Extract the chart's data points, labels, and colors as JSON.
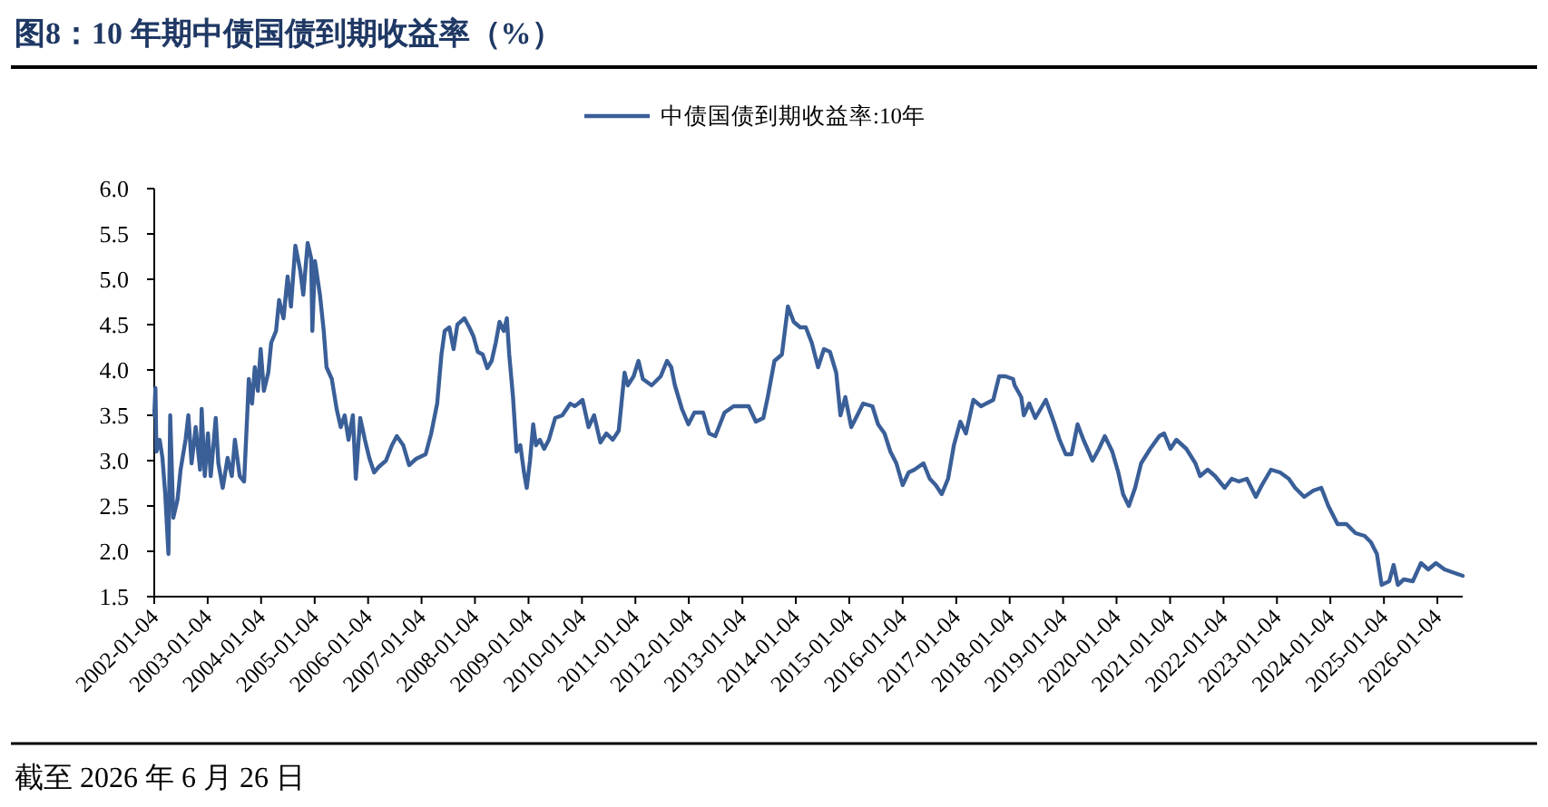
{
  "chart_data": {
    "type": "line",
    "title": "图8：10 年期中债国债到期收益率（%）",
    "annotations": [
      "截至 2026 年 6 月 26 日"
    ],
    "legend": "top",
    "xlim": [
      "2002-01-04",
      "2026-06-26"
    ],
    "xticks": [
      "2002-01-04",
      "2003-01-04",
      "2004-01-04",
      "2005-01-04",
      "2006-01-04",
      "2007-01-04",
      "2008-01-04",
      "2009-01-04",
      "2010-01-04",
      "2011-01-04",
      "2012-01-04",
      "2013-01-04",
      "2014-01-04",
      "2015-01-04",
      "2016-01-04",
      "2017-01-04",
      "2018-01-04",
      "2019-01-04",
      "2020-01-04",
      "2021-01-04",
      "2022-01-04",
      "2023-01-04",
      "2024-01-04",
      "2025-01-04",
      "2026-01-04"
    ],
    "ylim": [
      1.5,
      6.0
    ],
    "yticks": [
      1.5,
      {
        "value": 2,
        "label": "2.0"
      },
      2.5,
      {
        "value": 3,
        "label": "3.0"
      },
      3.5,
      {
        "value": 4,
        "label": "4.0"
      },
      4.5,
      {
        "value": 5,
        "label": "5.0"
      },
      5.5,
      {
        "value": 6,
        "label": "6.0"
      }
    ],
    "x": [
      "2002-01-04",
      "2002-01-12",
      "2002-01-19",
      "2002-02-10",
      "2002-03-01",
      "2002-03-20",
      "2002-04-11",
      "2002-04-23",
      "2002-05-14",
      "2002-06-12",
      "2002-07-03",
      "2002-08-06",
      "2002-08-25",
      "2002-09-16",
      "2002-10-14",
      "2002-11-13",
      "2002-11-24",
      "2002-12-15",
      "2003-01-06",
      "2003-01-25",
      "2003-02-28",
      "2003-03-18",
      "2003-04-17",
      "2003-05-20",
      "2003-06-18",
      "2003-07-09",
      "2003-08-11",
      "2003-09-10",
      "2003-10-01",
      "2003-10-12",
      "2003-11-03",
      "2003-11-22",
      "2003-12-13",
      "2004-01-01",
      "2004-01-23",
      "2004-02-22",
      "2004-03-13",
      "2004-04-15",
      "2004-05-06",
      "2004-06-05",
      "2004-07-03",
      "2004-07-26",
      "2004-08-25",
      "2004-09-27",
      "2004-10-18",
      "2004-11-17",
      "2004-12-11",
      "2004-12-19",
      "2005-01-06",
      "2005-02-09",
      "2005-03-07",
      "2005-03-26",
      "2005-05-01",
      "2005-06-03",
      "2005-07-01",
      "2005-07-28",
      "2005-08-23",
      "2005-09-22",
      "2005-10-12",
      "2005-11-11",
      "2005-12-13",
      "2006-01-12",
      "2006-02-14",
      "2006-03-17",
      "2006-05-06",
      "2006-06-16",
      "2006-07-19",
      "2006-09-01",
      "2006-10-11",
      "2006-11-28",
      "2007-02-01",
      "2007-03-11",
      "2007-04-21",
      "2007-05-20",
      "2007-06-11",
      "2007-07-13",
      "2007-08-11",
      "2007-09-06",
      "2007-10-24",
      "2007-11-26",
      "2007-12-25",
      "2008-01-23",
      "2008-02-26",
      "2008-03-28",
      "2008-04-27",
      "2008-05-25",
      "2008-06-20",
      "2008-07-19",
      "2008-08-09",
      "2008-08-25",
      "2008-09-20",
      "2008-10-14",
      "2008-11-09",
      "2008-12-04",
      "2008-12-23",
      "2009-01-14",
      "2009-02-05",
      "2009-02-24",
      "2009-03-22",
      "2009-04-21",
      "2009-05-23",
      "2009-07-05",
      "2009-08-23",
      "2009-10-16",
      "2009-11-15",
      "2009-12-10",
      "2010-01-08",
      "2010-02-18",
      "2010-03-28",
      "2010-05-10",
      "2010-06-20",
      "2010-08-02",
      "2010-09-12",
      "2010-10-22",
      "2010-11-13",
      "2010-12-23",
      "2011-01-25",
      "2011-02-24",
      "2011-04-25",
      "2011-06-26",
      "2011-08-08",
      "2011-09-06",
      "2011-10-01",
      "2011-11-18",
      "2012-01-01",
      "2012-02-11",
      "2012-04-11",
      "2012-05-22",
      "2012-07-03",
      "2012-09-04",
      "2012-11-05",
      "2013-02-16",
      "2013-04-06",
      "2013-05-27",
      "2013-06-26",
      "2013-08-11",
      "2013-10-01",
      "2013-11-11",
      "2013-12-21",
      "2014-02-03",
      "2014-03-13",
      "2014-04-23",
      "2014-06-05",
      "2014-07-15",
      "2014-08-25",
      "2014-10-07",
      "2014-11-05",
      "2014-12-08",
      "2015-01-18",
      "2015-02-28",
      "2015-04-09",
      "2015-06-11",
      "2015-07-20",
      "2015-09-02",
      "2015-10-12",
      "2015-11-22",
      "2016-01-04",
      "2016-02-14",
      "2016-03-24",
      "2016-05-25",
      "2016-07-07",
      "2016-08-17",
      "2016-09-27",
      "2016-11-09",
      "2016-12-19",
      "2017-02-01",
      "2017-03-11",
      "2017-05-01",
      "2017-06-22",
      "2017-09-14",
      "2017-10-24",
      "2017-12-06",
      "2018-01-27",
      "2018-02-07",
      "2018-03-24",
      "2018-04-11",
      "2018-05-18",
      "2018-06-28",
      "2018-09-08",
      "2018-11-01",
      "2018-12-11",
      "2019-01-22",
      "2019-03-03",
      "2019-04-13",
      "2019-05-23",
      "2019-07-24",
      "2019-09-06",
      "2019-10-16",
      "2019-12-06",
      "2020-01-16",
      "2020-02-18",
      "2020-03-28",
      "2020-05-10",
      "2020-06-20",
      "2020-08-21",
      "2020-10-22",
      "2020-11-24",
      "2021-01-06",
      "2021-02-16",
      "2021-04-25",
      "2021-06-26",
      "2021-07-28",
      "2021-09-18",
      "2021-11-07",
      "2022-01-12",
      "2022-03-01",
      "2022-04-19",
      "2022-06-12",
      "2022-08-13",
      "2022-09-23",
      "2022-11-24",
      "2023-01-25",
      "2023-03-26",
      "2023-05-08",
      "2023-07-09",
      "2023-09-10",
      "2023-11-03",
      "2023-12-21",
      "2024-02-22",
      "2024-04-23",
      "2024-06-24",
      "2024-08-25",
      "2024-10-07",
      "2024-11-17",
      "2024-12-19",
      "2025-02-09",
      "2025-03-11",
      "2025-04-09",
      "2025-05-20",
      "2025-07-20",
      "2025-09-14",
      "2025-11-03",
      "2025-12-25",
      "2026-02-22",
      "2026-04-15",
      "2026-06-26"
    ],
    "series": [
      {
        "name": "中债国债到期收益率:10年",
        "color": "#3a5f98",
        "values": [
          3.5,
          3.8,
          3.1,
          3.23,
          3.03,
          2.63,
          1.97,
          3.5,
          2.37,
          2.57,
          2.9,
          3.23,
          3.5,
          2.97,
          3.37,
          2.9,
          3.57,
          2.83,
          3.3,
          2.83,
          3.47,
          2.97,
          2.7,
          3.03,
          2.83,
          3.23,
          2.83,
          2.77,
          3.5,
          3.9,
          3.63,
          4.03,
          3.77,
          4.23,
          3.77,
          3.97,
          4.3,
          4.43,
          4.77,
          4.57,
          5.03,
          4.7,
          5.37,
          5.1,
          4.83,
          5.4,
          5.23,
          4.43,
          5.2,
          4.83,
          4.43,
          4.03,
          3.9,
          3.57,
          3.37,
          3.5,
          3.23,
          3.5,
          2.8,
          3.47,
          3.23,
          3.03,
          2.87,
          2.93,
          3.0,
          3.17,
          3.27,
          3.17,
          2.95,
          3.02,
          3.07,
          3.3,
          3.63,
          4.17,
          4.43,
          4.47,
          4.23,
          4.5,
          4.57,
          4.47,
          4.37,
          4.2,
          4.17,
          4.02,
          4.1,
          4.3,
          4.53,
          4.43,
          4.57,
          4.17,
          3.7,
          3.1,
          3.17,
          2.87,
          2.7,
          3.0,
          3.4,
          3.17,
          3.23,
          3.13,
          3.23,
          3.47,
          3.5,
          3.63,
          3.6,
          3.63,
          3.67,
          3.37,
          3.5,
          3.2,
          3.3,
          3.23,
          3.33,
          3.97,
          3.83,
          3.93,
          4.1,
          3.9,
          3.83,
          3.93,
          4.1,
          4.03,
          3.83,
          3.57,
          3.4,
          3.53,
          3.53,
          3.3,
          3.27,
          3.53,
          3.6,
          3.6,
          3.43,
          3.47,
          3.7,
          4.1,
          4.17,
          4.7,
          4.53,
          4.47,
          4.47,
          4.3,
          4.03,
          4.23,
          4.2,
          3.97,
          3.5,
          3.7,
          3.37,
          3.5,
          3.63,
          3.6,
          3.4,
          3.3,
          3.1,
          2.97,
          2.73,
          2.87,
          2.9,
          2.97,
          2.8,
          2.73,
          2.63,
          2.8,
          3.17,
          3.43,
          3.3,
          3.67,
          3.6,
          3.67,
          3.93,
          3.93,
          3.9,
          3.83,
          3.7,
          3.5,
          3.63,
          3.47,
          3.67,
          3.43,
          3.23,
          3.07,
          3.07,
          3.4,
          3.23,
          3.0,
          3.13,
          3.27,
          3.1,
          2.87,
          2.63,
          2.5,
          2.7,
          2.97,
          3.13,
          3.27,
          3.3,
          3.13,
          3.23,
          3.13,
          2.97,
          2.83,
          2.9,
          2.83,
          2.7,
          2.8,
          2.77,
          2.8,
          2.6,
          2.73,
          2.9,
          2.87,
          2.8,
          2.7,
          2.6,
          2.67,
          2.7,
          2.5,
          2.3,
          2.3,
          2.2,
          2.17,
          2.1,
          1.97,
          1.63,
          1.67,
          1.85,
          1.63,
          1.69,
          1.67,
          1.87,
          1.8,
          1.87,
          1.8,
          1.77,
          1.73
        ]
      }
    ]
  }
}
